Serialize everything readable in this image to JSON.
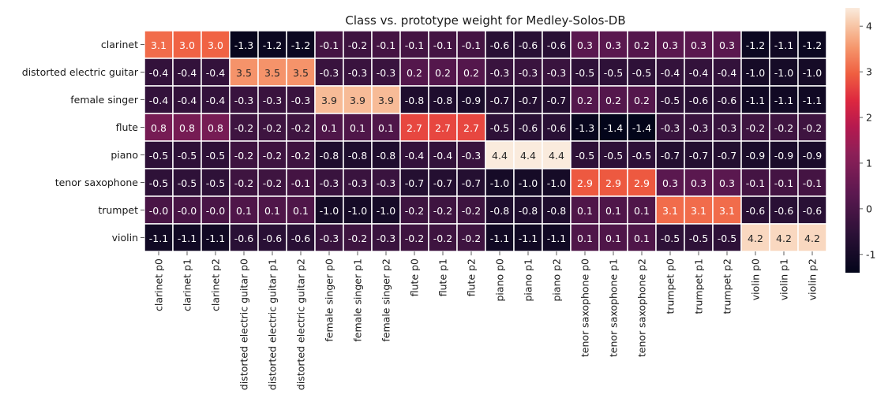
{
  "chart_data": {
    "type": "heatmap",
    "title": "Class vs. prototype weight for Medley-Solos-DB",
    "xlabel": "",
    "ylabel": "",
    "rows": [
      "clarinet",
      "distorted electric guitar",
      "female singer",
      "flute",
      "piano",
      "tenor saxophone",
      "trumpet",
      "violin"
    ],
    "columns": [
      "clarinet p0",
      "clarinet p1",
      "clarinet p2",
      "distorted electric guitar p0",
      "distorted electric guitar p1",
      "distorted electric guitar p2",
      "female singer p0",
      "female singer p1",
      "female singer p2",
      "flute p0",
      "flute p1",
      "flute p2",
      "piano p0",
      "piano p1",
      "piano p2",
      "tenor saxophone p0",
      "tenor saxophone p1",
      "tenor saxophone p2",
      "trumpet p0",
      "trumpet p1",
      "trumpet p2",
      "violin p0",
      "violin p1",
      "violin p2"
    ],
    "labels": [
      [
        "3.1",
        "3.0",
        "3.0",
        "-1.3",
        "-1.2",
        "-1.2",
        "-0.1",
        "-0.2",
        "-0.1",
        "-0.1",
        "-0.1",
        "-0.1",
        "-0.6",
        "-0.6",
        "-0.6",
        "0.3",
        "0.3",
        "0.2",
        "0.3",
        "0.3",
        "0.3",
        "-1.2",
        "-1.1",
        "-1.2"
      ],
      [
        "-0.4",
        "-0.4",
        "-0.4",
        "3.5",
        "3.5",
        "3.5",
        "-0.3",
        "-0.3",
        "-0.3",
        "0.2",
        "0.2",
        "0.2",
        "-0.3",
        "-0.3",
        "-0.3",
        "-0.5",
        "-0.5",
        "-0.5",
        "-0.4",
        "-0.4",
        "-0.4",
        "-1.0",
        "-1.0",
        "-1.0"
      ],
      [
        "-0.4",
        "-0.4",
        "-0.4",
        "-0.3",
        "-0.3",
        "-0.3",
        "3.9",
        "3.9",
        "3.9",
        "-0.8",
        "-0.8",
        "-0.9",
        "-0.7",
        "-0.7",
        "-0.7",
        "0.2",
        "0.2",
        "0.2",
        "-0.5",
        "-0.6",
        "-0.6",
        "-1.1",
        "-1.1",
        "-1.1"
      ],
      [
        "0.8",
        "0.8",
        "0.8",
        "-0.2",
        "-0.2",
        "-0.2",
        "0.1",
        "0.1",
        "0.1",
        "2.7",
        "2.7",
        "2.7",
        "-0.5",
        "-0.6",
        "-0.6",
        "-1.3",
        "-1.4",
        "-1.4",
        "-0.3",
        "-0.3",
        "-0.3",
        "-0.2",
        "-0.2",
        "-0.2"
      ],
      [
        "-0.5",
        "-0.5",
        "-0.5",
        "-0.2",
        "-0.2",
        "-0.2",
        "-0.8",
        "-0.8",
        "-0.8",
        "-0.4",
        "-0.4",
        "-0.3",
        "4.4",
        "4.4",
        "4.4",
        "-0.5",
        "-0.5",
        "-0.5",
        "-0.7",
        "-0.7",
        "-0.7",
        "-0.9",
        "-0.9",
        "-0.9"
      ],
      [
        "-0.5",
        "-0.5",
        "-0.5",
        "-0.2",
        "-0.2",
        "-0.1",
        "-0.3",
        "-0.3",
        "-0.3",
        "-0.7",
        "-0.7",
        "-0.7",
        "-1.0",
        "-1.0",
        "-1.0",
        "2.9",
        "2.9",
        "2.9",
        "0.3",
        "0.3",
        "0.3",
        "-0.1",
        "-0.1",
        "-0.1"
      ],
      [
        "-0.0",
        "-0.0",
        "-0.0",
        "0.1",
        "0.1",
        "0.1",
        "-1.0",
        "-1.0",
        "-1.0",
        "-0.2",
        "-0.2",
        "-0.2",
        "-0.8",
        "-0.8",
        "-0.8",
        "0.1",
        "0.1",
        "0.1",
        "3.1",
        "3.1",
        "3.1",
        "-0.6",
        "-0.6",
        "-0.6"
      ],
      [
        "-1.1",
        "-1.1",
        "-1.1",
        "-0.6",
        "-0.6",
        "-0.6",
        "-0.3",
        "-0.2",
        "-0.3",
        "-0.2",
        "-0.2",
        "-0.2",
        "-1.1",
        "-1.1",
        "-1.1",
        "0.1",
        "0.1",
        "0.1",
        "-0.5",
        "-0.5",
        "-0.5",
        "4.2",
        "4.2",
        "4.2"
      ]
    ],
    "colormap": "rocket",
    "colorbar": {
      "vmin": -1.4,
      "vmax": 4.4,
      "ticks": [
        "-1",
        "0",
        "1",
        "2",
        "3",
        "4"
      ]
    },
    "grid": true,
    "legend": "colorbar-right"
  }
}
